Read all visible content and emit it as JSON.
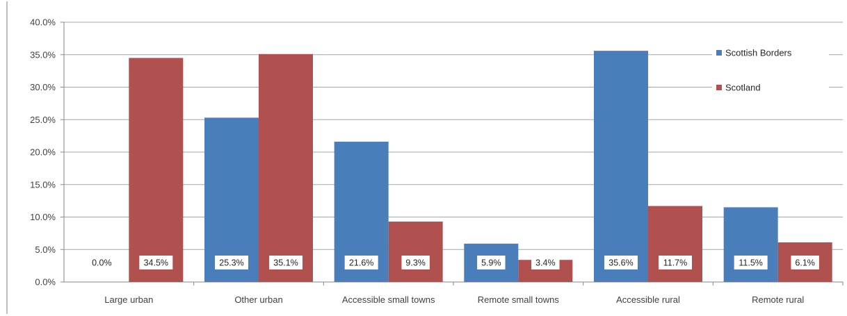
{
  "chart_data": {
    "type": "bar",
    "categories": [
      "Large urban",
      "Other urban",
      "Accessible small towns",
      "Remote small towns",
      "Accessible rural",
      "Remote rural"
    ],
    "series": [
      {
        "name": "Scottish Borders",
        "color": "#4a7ebb",
        "values": [
          0.0,
          25.3,
          21.6,
          5.9,
          35.6,
          11.5
        ],
        "labels": [
          "0.0%",
          "25.3%",
          "21.6%",
          "5.9%",
          "35.6%",
          "11.5%"
        ]
      },
      {
        "name": "Scotland",
        "color": "#b0504f",
        "values": [
          34.5,
          35.1,
          9.3,
          3.4,
          11.7,
          6.1
        ],
        "labels": [
          "34.5%",
          "35.1%",
          "9.3%",
          "3.4%",
          "11.7%",
          "6.1%"
        ]
      }
    ],
    "yticks": [
      "0.0%",
      "5.0%",
      "10.0%",
      "15.0%",
      "20.0%",
      "25.0%",
      "30.0%",
      "35.0%",
      "40.0%"
    ],
    "ylim": [
      0,
      40
    ],
    "title": "",
    "xlabel": "",
    "ylabel": "",
    "grid": true,
    "legend_position": "top-right"
  }
}
